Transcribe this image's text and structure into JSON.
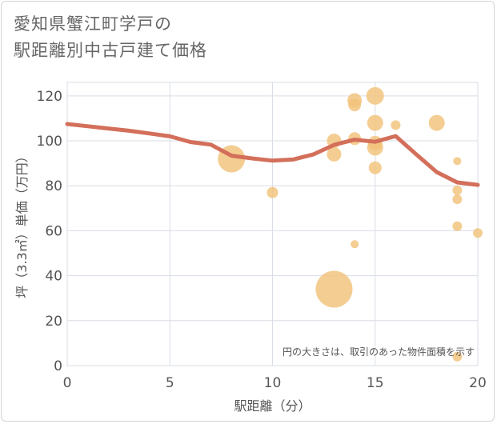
{
  "title_lines": [
    "愛知県蟹江町学戸の",
    "駅距離別中古戸建て価格"
  ],
  "chart_data": {
    "type": "scatter",
    "title": "愛知県蟹江町学戸の駅距離別中古戸建て価格",
    "xlabel": "駅距離（分）",
    "ylabel": "坪（3.3㎡）単価（万円）",
    "xlim": [
      0,
      20
    ],
    "ylim": [
      0,
      126
    ],
    "xticks": [
      0,
      5,
      10,
      15,
      20
    ],
    "yticks": [
      0,
      20,
      40,
      60,
      80,
      100,
      120
    ],
    "grid": true,
    "annotation": "円の大きさは、取引のあった物件面積を示す",
    "colors": {
      "bubble": "#f2c27a",
      "trend": "#d36f5a",
      "grid": "#d9dde6"
    },
    "bubbles": [
      {
        "x": 8,
        "y": 92,
        "size": 17
      },
      {
        "x": 10,
        "y": 77,
        "size": 7
      },
      {
        "x": 13,
        "y": 100,
        "size": 9
      },
      {
        "x": 13,
        "y": 94,
        "size": 9
      },
      {
        "x": 13,
        "y": 34,
        "size": 23
      },
      {
        "x": 14,
        "y": 118,
        "size": 9
      },
      {
        "x": 14,
        "y": 116,
        "size": 8
      },
      {
        "x": 14,
        "y": 101,
        "size": 8
      },
      {
        "x": 14,
        "y": 54,
        "size": 5
      },
      {
        "x": 15,
        "y": 120,
        "size": 11
      },
      {
        "x": 15,
        "y": 108,
        "size": 10
      },
      {
        "x": 15,
        "y": 99,
        "size": 9
      },
      {
        "x": 15,
        "y": 97,
        "size": 10
      },
      {
        "x": 15,
        "y": 88,
        "size": 8
      },
      {
        "x": 16,
        "y": 107,
        "size": 6
      },
      {
        "x": 18,
        "y": 108,
        "size": 10
      },
      {
        "x": 19,
        "y": 91,
        "size": 5
      },
      {
        "x": 19,
        "y": 78,
        "size": 6
      },
      {
        "x": 19,
        "y": 74,
        "size": 6
      },
      {
        "x": 19,
        "y": 62,
        "size": 6
      },
      {
        "x": 19,
        "y": 4,
        "size": 6
      },
      {
        "x": 20,
        "y": 59,
        "size": 6
      }
    ],
    "trend": {
      "x": [
        0,
        1,
        2,
        3,
        4,
        5,
        6,
        7,
        8,
        9,
        10,
        11,
        12,
        13,
        14,
        15,
        16,
        17,
        18,
        19,
        20
      ],
      "y": [
        107.5,
        106.5,
        105.5,
        104.5,
        103.3,
        102,
        99.5,
        98.3,
        93.4,
        92.2,
        91.2,
        91.7,
        94,
        98.2,
        100.5,
        99.6,
        102.1,
        94,
        86.1,
        81.5,
        80.4
      ]
    }
  }
}
